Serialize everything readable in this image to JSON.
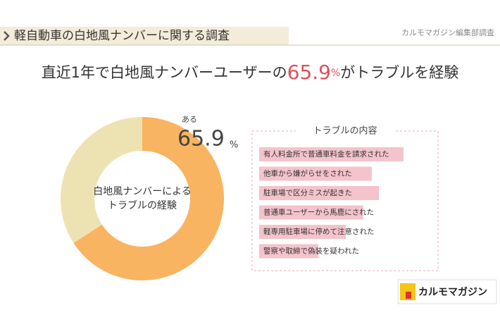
{
  "header": {
    "title": "軽自動車の白地風ナンバーに関する調査",
    "source": "カルモマガジン編集部調査"
  },
  "headline": {
    "before": "直近1年で白地風ナンバーユーザーの",
    "value": "65.9",
    "unit": "%",
    "after": "がトラブルを経験"
  },
  "chart_data": [
    {
      "type": "pie",
      "categories": [
        "ある",
        null
      ],
      "values": [
        65.9,
        34.1
      ],
      "unit": "%",
      "colors": [
        "#f8b460",
        "#ede3b2"
      ],
      "center_label": [
        "白地風ナンバーによる",
        "トラブルの経験"
      ]
    },
    {
      "type": "bar",
      "title": "トラブルの内容",
      "categories": [
        "有人料金所で普通車料金を請求された",
        "他車から嫌がらせをされた",
        "駐車場で区分ミスが起きた",
        "普通車ユーザーから馬鹿にされた",
        "軽専用駐車場に停めて注意された",
        "警察や取締で偽装を疑われた"
      ],
      "values": [
        100,
        78,
        83,
        72,
        60,
        41
      ],
      "xlim": [
        0,
        100
      ],
      "color": "#f2b9c3"
    }
  ],
  "logo": "カルモマガジン"
}
